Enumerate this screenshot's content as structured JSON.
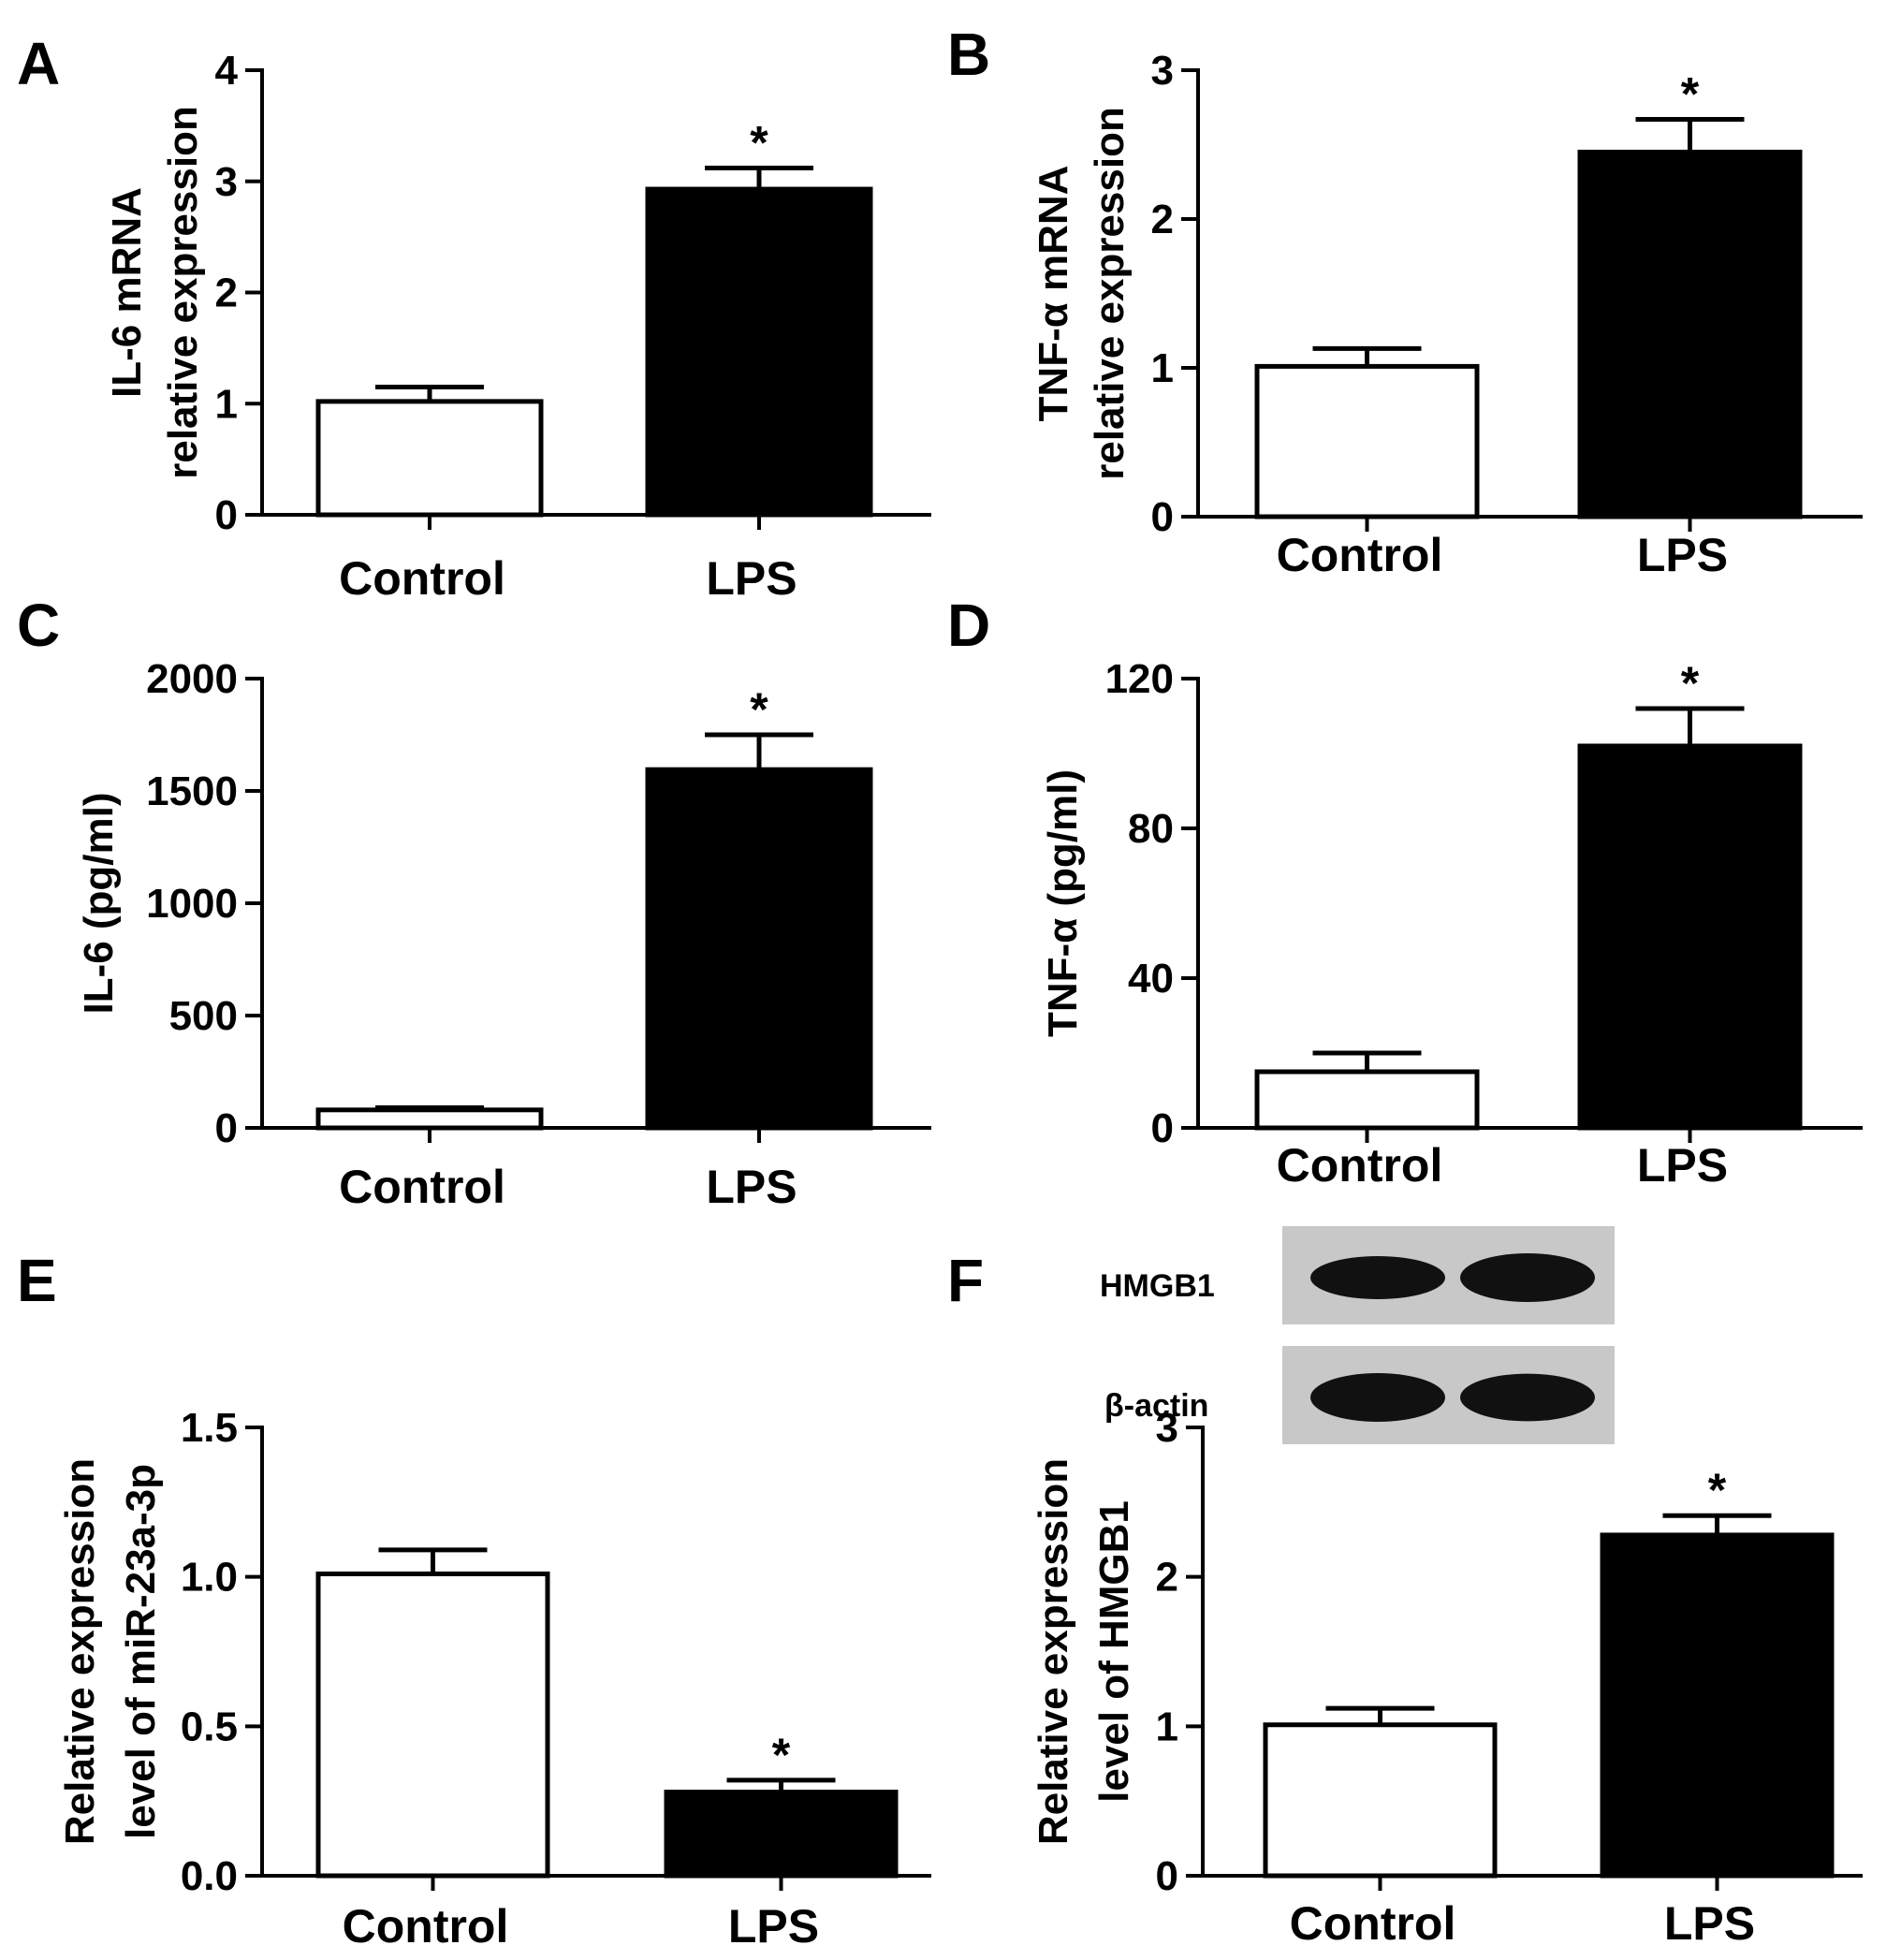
{
  "chart_data": [
    {
      "panel": "A",
      "type": "bar",
      "categories": [
        "Control",
        "LPS"
      ],
      "values": [
        1.02,
        2.93
      ],
      "errors": [
        0.13,
        0.19
      ],
      "significance": [
        "",
        "*"
      ],
      "ylabel_lines": [
        "IL-6 mRNA",
        "relative expression"
      ],
      "ylim": [
        0,
        4
      ],
      "yticks": [
        "0",
        "1",
        "2",
        "3",
        "4"
      ],
      "fills": [
        "#ffffff",
        "#000000"
      ]
    },
    {
      "panel": "B",
      "type": "bar",
      "categories": [
        "Control",
        "LPS"
      ],
      "values": [
        1.01,
        2.45
      ],
      "errors": [
        0.12,
        0.22
      ],
      "significance": [
        "",
        "*"
      ],
      "ylabel_lines": [
        "TNF-α mRNA",
        "relative expression"
      ],
      "ylim": [
        0,
        3
      ],
      "yticks": [
        "0",
        "1",
        "2",
        "3"
      ],
      "fills": [
        "#ffffff",
        "#000000"
      ]
    },
    {
      "panel": "C",
      "type": "bar",
      "categories": [
        "Control",
        "LPS"
      ],
      "values": [
        80,
        1595
      ],
      "errors": [
        10,
        155
      ],
      "significance": [
        "",
        "*"
      ],
      "ylabel_lines": [
        "IL-6 (pg/ml)"
      ],
      "ylim": [
        0,
        2000
      ],
      "yticks": [
        "0",
        "500",
        "1000",
        "1500",
        "2000"
      ],
      "fills": [
        "#ffffff",
        "#000000"
      ]
    },
    {
      "panel": "D",
      "type": "bar",
      "categories": [
        "Control",
        "LPS"
      ],
      "values": [
        15,
        102
      ],
      "errors": [
        5,
        10
      ],
      "significance": [
        "",
        "*"
      ],
      "ylabel_lines": [
        "TNF-α (pg/ml)"
      ],
      "ylim": [
        0,
        120
      ],
      "yticks": [
        "0",
        "40",
        "80",
        "120"
      ],
      "fills": [
        "#ffffff",
        "#000000"
      ]
    },
    {
      "panel": "E",
      "type": "bar",
      "categories": [
        "Control",
        "LPS"
      ],
      "values": [
        1.01,
        0.28
      ],
      "errors": [
        0.08,
        0.04
      ],
      "significance": [
        "",
        "*"
      ],
      "ylabel_lines": [
        "Relative expression",
        "level of miR-23a-3p"
      ],
      "ylim": [
        0,
        1.5
      ],
      "yticks": [
        "0.0",
        "0.5",
        "1.0",
        "1.5"
      ],
      "fills": [
        "#ffffff",
        "#000000"
      ]
    },
    {
      "panel": "F",
      "type": "bar",
      "categories": [
        "Control",
        "LPS"
      ],
      "values": [
        1.01,
        2.28
      ],
      "errors": [
        0.11,
        0.13
      ],
      "significance": [
        "",
        "*"
      ],
      "ylabel_lines": [
        "Relative expression",
        "level of HMGB1"
      ],
      "ylim": [
        0,
        3
      ],
      "yticks": [
        "0",
        "1",
        "2",
        "3"
      ],
      "fills": [
        "#ffffff",
        "#000000"
      ],
      "blot": {
        "rows": [
          {
            "label": "HMGB1",
            "band_intensity": [
              0.75,
              1.0
            ]
          },
          {
            "label": "β-actin",
            "band_intensity": [
              1.0,
              0.95
            ]
          }
        ]
      }
    }
  ]
}
